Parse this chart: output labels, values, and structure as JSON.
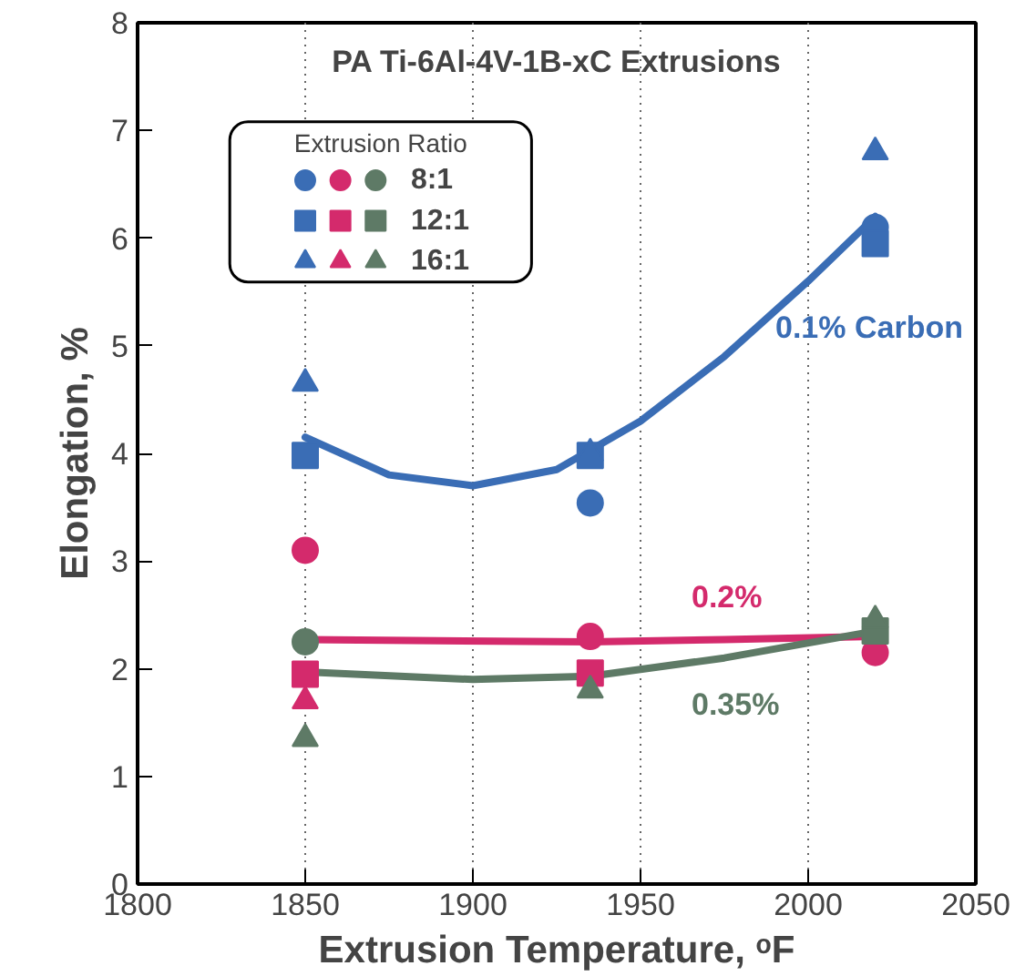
{
  "chart_data": {
    "type": "scatter",
    "title": "PA Ti-6Al-4V-1B-xC Extrusions",
    "xlabel": "Extrusion Temperature, ᵒF",
    "ylabel": "Elongation, %",
    "legend_title": "Extrusion Ratio",
    "legend": "top left",
    "grid": "x",
    "xlim": [
      1800,
      2050
    ],
    "ylim": [
      0,
      8
    ],
    "xticks": [
      1800,
      1850,
      1900,
      1950,
      2000,
      2050
    ],
    "yticks": [
      0,
      1,
      2,
      3,
      4,
      5,
      6,
      7,
      8
    ],
    "series": [
      {
        "type": "line",
        "name": "0.1% Carbon",
        "color": "#3a6db5",
        "x": [
          1850,
          1875,
          1900,
          1925,
          1950,
          1975,
          2000,
          2020
        ],
        "values": [
          4.15,
          3.8,
          3.7,
          3.85,
          4.3,
          4.9,
          5.6,
          6.2
        ]
      },
      {
        "type": "line",
        "name": "0.2%",
        "color": "#d42a6c",
        "x": [
          1850,
          1935,
          1975,
          2020
        ],
        "values": [
          2.27,
          2.25,
          2.27,
          2.3
        ]
      },
      {
        "type": "line",
        "name": "0.35%",
        "color": "#5e7a66",
        "x": [
          1850,
          1900,
          1935,
          1975,
          2020
        ],
        "values": [
          1.97,
          1.9,
          1.93,
          2.1,
          2.35
        ]
      },
      {
        "marker": "circle",
        "color": "#3a6db5",
        "x": [
          1935,
          2020
        ],
        "values": [
          3.54,
          6.1
        ]
      },
      {
        "marker": "circle",
        "color": "#d42a6c",
        "x": [
          1850,
          1935,
          2020
        ],
        "values": [
          3.1,
          2.3,
          2.15
        ]
      },
      {
        "name": "8:1",
        "marker": "circle",
        "color": "#5e7a66",
        "x": [
          1850
        ],
        "values": [
          2.25
        ]
      },
      {
        "marker": "square",
        "color": "#3a6db5",
        "x": [
          1850,
          1935,
          2020
        ],
        "values": [
          3.98,
          3.98,
          5.95
        ]
      },
      {
        "marker": "square",
        "color": "#d42a6c",
        "x": [
          1850,
          1935
        ],
        "values": [
          1.95,
          1.96
        ]
      },
      {
        "name": "12:1",
        "marker": "square",
        "color": "#5e7a66",
        "x": [
          2020
        ],
        "values": [
          2.35
        ]
      },
      {
        "marker": "triangle",
        "color": "#3a6db5",
        "x": [
          1850,
          1935,
          2020
        ],
        "values": [
          4.65,
          4.0,
          6.8
        ]
      },
      {
        "marker": "triangle",
        "color": "#d42a6c",
        "x": [
          1850
        ],
        "values": [
          1.7
        ]
      },
      {
        "name": "16:1",
        "marker": "triangle",
        "color": "#5e7a66",
        "x": [
          1850,
          1935,
          2020
        ],
        "values": [
          1.35,
          1.8,
          2.45
        ]
      }
    ]
  }
}
